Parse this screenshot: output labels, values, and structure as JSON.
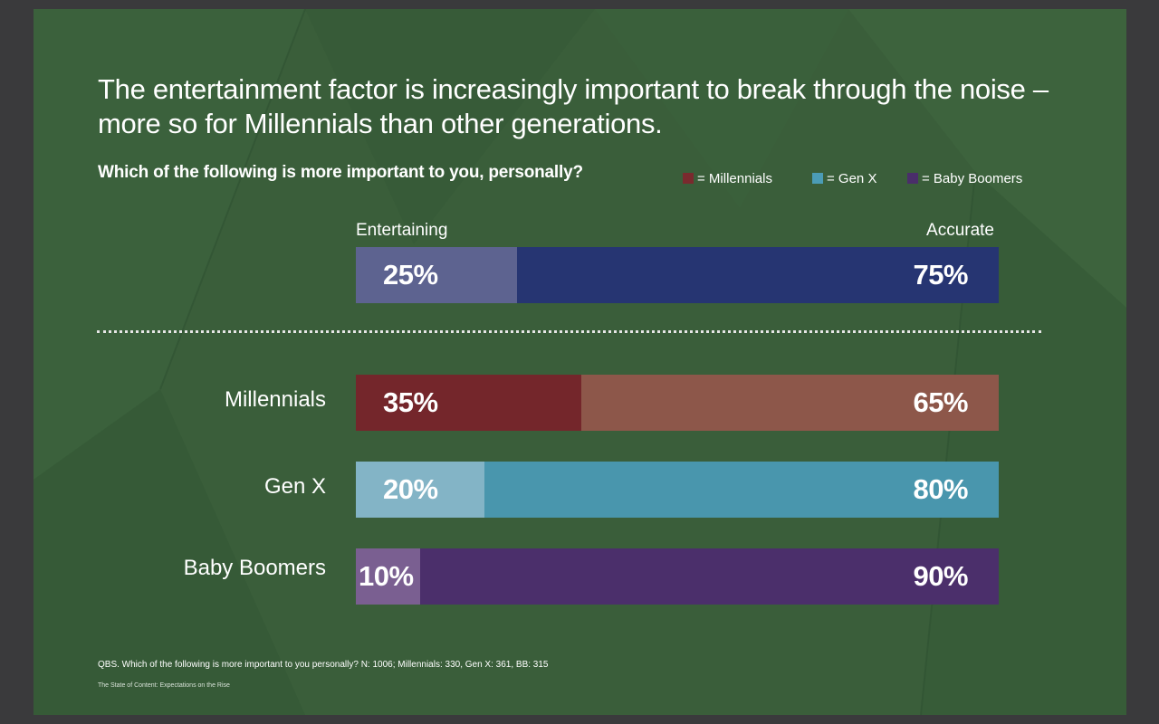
{
  "title": "The entertainment factor is increasingly important to break through the noise – more so for Millennials than other generations.",
  "question": "Which of the following is more important to you, personally?",
  "legend": [
    {
      "label": "= Millennials",
      "color": "#7a2a2e"
    },
    {
      "label": "= Gen X",
      "color": "#4b9cb6"
    },
    {
      "label": "= Baby Boomers",
      "color": "#4a2e6a"
    }
  ],
  "chart_data": {
    "type": "bar",
    "orientation": "horizontal",
    "stacked": true,
    "series_labels": {
      "left": "Entertaining",
      "right": "Accurate"
    },
    "categories": [
      "",
      "Millennials",
      "Gen X",
      "Baby Boomers"
    ],
    "series": [
      {
        "name": "Entertaining",
        "values": [
          25,
          35,
          20,
          10
        ],
        "labels": [
          "25%",
          "35%",
          "20%",
          "10%"
        ]
      },
      {
        "name": "Accurate",
        "values": [
          75,
          65,
          80,
          90
        ],
        "labels": [
          "75%",
          "65%",
          "80%",
          "90%"
        ]
      }
    ],
    "colors": [
      {
        "left": "#5d6390",
        "right": "#263572"
      },
      {
        "left": "#74262b",
        "right": "#8d574a"
      },
      {
        "left": "#83b4c6",
        "right": "#4996ad"
      },
      {
        "left": "#7a5f91",
        "right": "#4b2f6b"
      }
    ],
    "xlim": [
      0,
      100
    ]
  },
  "footnote": "QBS. Which of the following is more important to you personally? N: 1006; Millennials: 330, Gen X: 361, BB: 315",
  "source": "The State of Content: Expectations on the Rise"
}
